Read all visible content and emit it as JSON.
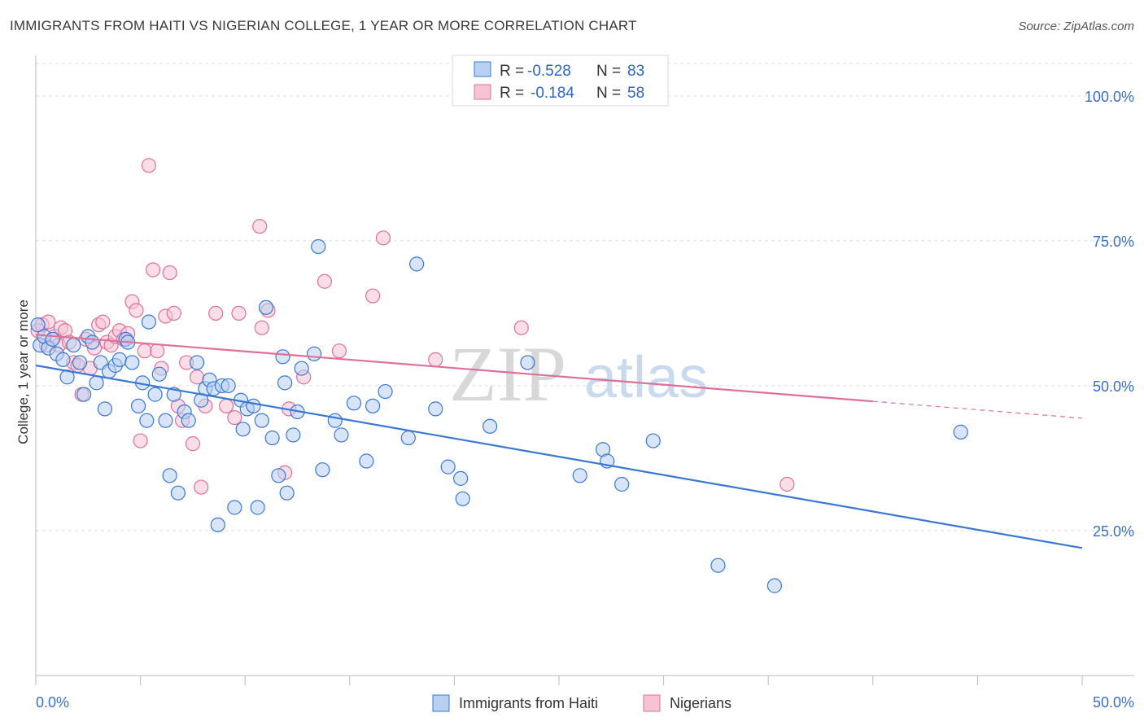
{
  "title": "IMMIGRANTS FROM HAITI VS NIGERIAN COLLEGE, 1 YEAR OR MORE CORRELATION CHART",
  "source": "Source: ZipAtlas.com",
  "watermark": {
    "zip": "ZIP",
    "atlas": "atlas"
  },
  "legend": {
    "haiti": {
      "r_label": "R =",
      "r_value": "-0.528",
      "n_label": "N =",
      "n_value": "83"
    },
    "nigerian": {
      "r_label": "R =",
      "r_value": "-0.184",
      "n_label": "N =",
      "n_value": "58"
    }
  },
  "bottom_legend": {
    "haiti": "Immigrants from Haiti",
    "nigerian": "Nigerians"
  },
  "colors": {
    "haiti": "#3a78d4",
    "haiti_fill": "#b8d0f2",
    "nigerian": "#e0709a",
    "nigerian_fill": "#f6c3d3",
    "tick": "#3a6fc4"
  },
  "chart_data": {
    "type": "scatter",
    "xlabel": "",
    "ylabel": "College, 1 year or more",
    "xlim": [
      0,
      50
    ],
    "ylim": [
      0,
      107
    ],
    "x_tick_labels": [
      "0.0%",
      "50.0%"
    ],
    "y_ticks": [
      {
        "value": 25,
        "label": "25.0%"
      },
      {
        "value": 50,
        "label": "50.0%"
      },
      {
        "value": 75,
        "label": "75.0%"
      },
      {
        "value": 100,
        "label": "100.0%"
      }
    ],
    "grid": "horizontal dashed",
    "legend_position": "top-center",
    "series": [
      {
        "name": "Immigrants from Haiti",
        "color": "#3a78d4",
        "trend": {
          "x": [
            0,
            50
          ],
          "y": [
            53.5,
            22.0
          ]
        },
        "points": [
          [
            0.1,
            60.5
          ],
          [
            0.2,
            57.0
          ],
          [
            0.4,
            58.5
          ],
          [
            0.6,
            56.5
          ],
          [
            0.8,
            58.0
          ],
          [
            1.0,
            55.5
          ],
          [
            1.3,
            54.5
          ],
          [
            1.5,
            51.5
          ],
          [
            1.8,
            57.0
          ],
          [
            2.1,
            54.0
          ],
          [
            2.3,
            48.5
          ],
          [
            2.5,
            58.5
          ],
          [
            2.7,
            57.5
          ],
          [
            2.9,
            50.5
          ],
          [
            3.1,
            54.0
          ],
          [
            3.3,
            46.0
          ],
          [
            3.5,
            52.5
          ],
          [
            3.8,
            53.5
          ],
          [
            4.0,
            54.5
          ],
          [
            4.3,
            58.0
          ],
          [
            4.4,
            57.5
          ],
          [
            4.6,
            54.0
          ],
          [
            4.9,
            46.5
          ],
          [
            5.1,
            50.5
          ],
          [
            5.3,
            44.0
          ],
          [
            5.4,
            61.0
          ],
          [
            5.7,
            48.5
          ],
          [
            5.9,
            52.0
          ],
          [
            6.2,
            44.0
          ],
          [
            6.4,
            34.5
          ],
          [
            6.6,
            48.5
          ],
          [
            6.8,
            31.5
          ],
          [
            7.1,
            45.5
          ],
          [
            7.3,
            44.0
          ],
          [
            7.7,
            54.0
          ],
          [
            7.9,
            47.5
          ],
          [
            8.1,
            49.5
          ],
          [
            8.3,
            51.0
          ],
          [
            8.5,
            49.5
          ],
          [
            8.7,
            26.0
          ],
          [
            8.9,
            50.0
          ],
          [
            9.2,
            50.0
          ],
          [
            9.5,
            29.0
          ],
          [
            9.8,
            47.5
          ],
          [
            9.9,
            42.5
          ],
          [
            10.1,
            46.0
          ],
          [
            10.4,
            46.5
          ],
          [
            10.6,
            29.0
          ],
          [
            10.8,
            44.0
          ],
          [
            11.0,
            63.5
          ],
          [
            11.3,
            41.0
          ],
          [
            11.6,
            34.5
          ],
          [
            11.8,
            55.0
          ],
          [
            11.9,
            50.5
          ],
          [
            12.0,
            31.5
          ],
          [
            12.3,
            41.5
          ],
          [
            12.5,
            45.5
          ],
          [
            12.7,
            53.0
          ],
          [
            13.3,
            55.5
          ],
          [
            13.5,
            74.0
          ],
          [
            13.7,
            35.5
          ],
          [
            14.3,
            44.0
          ],
          [
            14.6,
            41.5
          ],
          [
            15.2,
            47.0
          ],
          [
            15.8,
            37.0
          ],
          [
            16.1,
            46.5
          ],
          [
            16.7,
            49.0
          ],
          [
            17.8,
            41.0
          ],
          [
            18.2,
            71.0
          ],
          [
            19.1,
            46.0
          ],
          [
            19.7,
            36.0
          ],
          [
            20.3,
            34.0
          ],
          [
            20.4,
            30.5
          ],
          [
            21.7,
            43.0
          ],
          [
            23.5,
            54.0
          ],
          [
            26.0,
            34.5
          ],
          [
            27.1,
            39.0
          ],
          [
            27.3,
            37.0
          ],
          [
            28.0,
            33.0
          ],
          [
            29.5,
            40.5
          ],
          [
            32.6,
            19.0
          ],
          [
            35.3,
            15.5
          ],
          [
            44.2,
            42.0
          ]
        ]
      },
      {
        "name": "Nigerians",
        "color": "#e0709a",
        "trend": {
          "x": [
            0,
            40
          ],
          "y": [
            58.8,
            47.3
          ]
        },
        "dashed_extension": {
          "x": [
            40,
            50
          ],
          "y": [
            47.3,
            44.4
          ]
        },
        "points": [
          [
            0.1,
            59.5
          ],
          [
            0.3,
            60.5
          ],
          [
            0.5,
            57.0
          ],
          [
            0.6,
            61.0
          ],
          [
            0.9,
            58.5
          ],
          [
            1.1,
            57.0
          ],
          [
            1.2,
            60.0
          ],
          [
            1.4,
            59.5
          ],
          [
            1.6,
            57.5
          ],
          [
            1.8,
            54.0
          ],
          [
            2.0,
            53.5
          ],
          [
            2.2,
            48.5
          ],
          [
            2.4,
            58.0
          ],
          [
            2.6,
            53.0
          ],
          [
            2.8,
            56.5
          ],
          [
            3.0,
            60.5
          ],
          [
            3.2,
            61.0
          ],
          [
            3.4,
            57.5
          ],
          [
            3.6,
            57.0
          ],
          [
            3.8,
            58.5
          ],
          [
            4.0,
            59.5
          ],
          [
            4.2,
            58.0
          ],
          [
            4.4,
            59.0
          ],
          [
            4.6,
            64.5
          ],
          [
            4.8,
            63.0
          ],
          [
            5.0,
            40.5
          ],
          [
            5.2,
            56.0
          ],
          [
            5.4,
            88.0
          ],
          [
            5.6,
            70.0
          ],
          [
            5.8,
            56.0
          ],
          [
            6.0,
            53.0
          ],
          [
            6.2,
            62.0
          ],
          [
            6.4,
            69.5
          ],
          [
            6.6,
            62.5
          ],
          [
            6.8,
            46.5
          ],
          [
            7.0,
            44.0
          ],
          [
            7.2,
            54.0
          ],
          [
            7.5,
            40.0
          ],
          [
            7.7,
            51.5
          ],
          [
            7.9,
            32.5
          ],
          [
            8.1,
            46.5
          ],
          [
            8.6,
            62.5
          ],
          [
            9.1,
            46.5
          ],
          [
            9.5,
            44.5
          ],
          [
            9.7,
            62.5
          ],
          [
            10.7,
            77.5
          ],
          [
            10.8,
            60.0
          ],
          [
            11.1,
            63.0
          ],
          [
            11.9,
            35.0
          ],
          [
            12.1,
            46.0
          ],
          [
            12.8,
            51.5
          ],
          [
            13.8,
            68.0
          ],
          [
            14.5,
            56.0
          ],
          [
            16.1,
            65.5
          ],
          [
            16.6,
            75.5
          ],
          [
            19.1,
            54.5
          ],
          [
            23.2,
            60.0
          ],
          [
            35.9,
            33.0
          ]
        ]
      }
    ]
  }
}
